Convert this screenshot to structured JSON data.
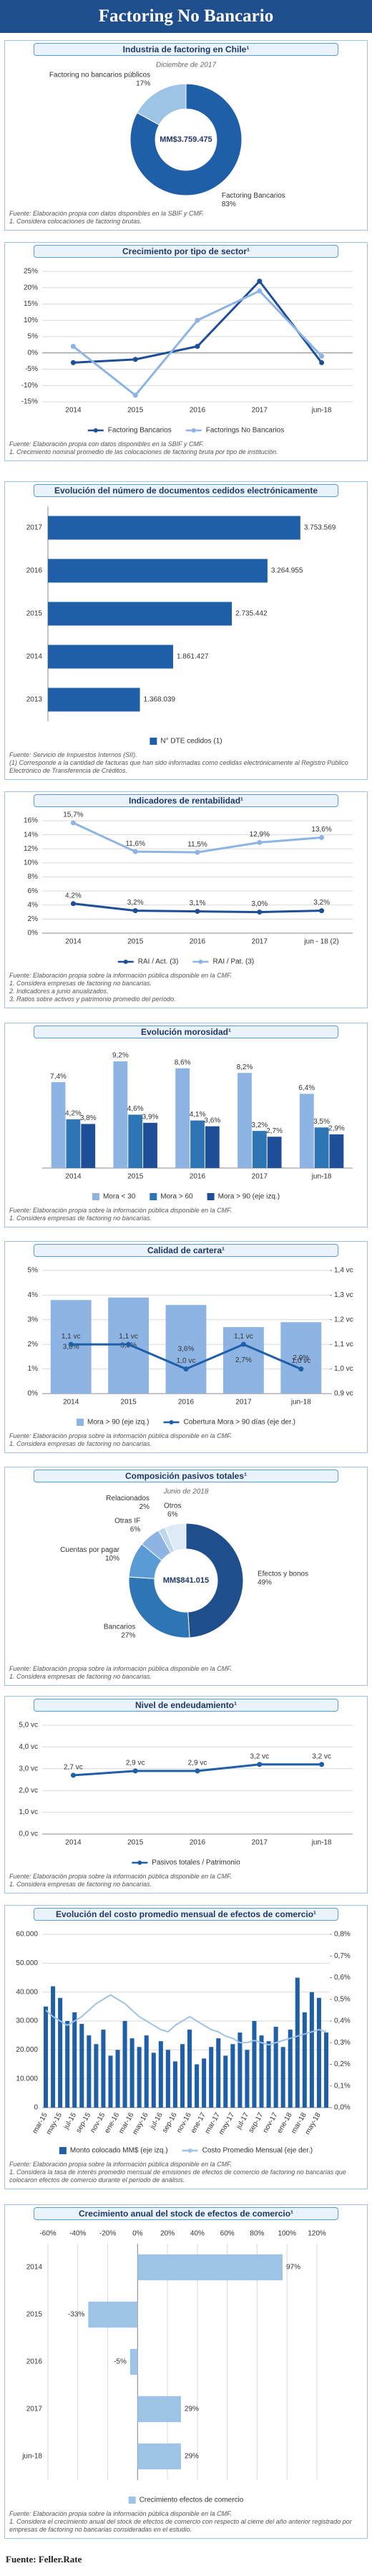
{
  "header": {
    "title": "Factoring No Bancario"
  },
  "chart_data": [
    {
      "type": "pie",
      "title": "Industria de factoring en Chile¹",
      "subtitle": "Diciembre de 2017",
      "center_label": "MM$3.759.475",
      "categories": [
        "Factoring Bancarios",
        "Factoring no bancarios públicos"
      ],
      "values": [
        83,
        17
      ],
      "value_labels": [
        "83%",
        "17%"
      ],
      "colors": [
        "#1f5fa8",
        "#9dc3e6"
      ],
      "notes": [
        "Fuente: Elaboración propia con datos disponibles en la SBIF y CMF.",
        "1. Considera colocaciones de factoring brutas."
      ]
    },
    {
      "type": "line",
      "title": "Crecimiento por tipo de sector¹",
      "categories": [
        "2014",
        "2015",
        "2016",
        "2017",
        "jun-18"
      ],
      "series": [
        {
          "name": "Factoring Bancarios",
          "color": "#1f4e99",
          "values": [
            -3,
            -2,
            2,
            22,
            -3
          ]
        },
        {
          "name": "Factorings No Bancarios",
          "color": "#8db4e2",
          "values": [
            2,
            -13,
            10,
            19,
            -1
          ]
        }
      ],
      "ylim": [
        -15,
        25
      ],
      "yticks": [
        {
          "value": -15,
          "label": "-15%"
        },
        {
          "value": -10,
          "label": "-10%"
        },
        {
          "value": -5,
          "label": "-5%"
        },
        {
          "value": 0,
          "label": "0%"
        },
        {
          "value": 5,
          "label": "5%"
        },
        {
          "value": 10,
          "label": "10%"
        },
        {
          "value": 15,
          "label": "15%"
        },
        {
          "value": 20,
          "label": "20%"
        },
        {
          "value": 25,
          "label": "25%"
        }
      ],
      "grid": true,
      "notes": [
        "Fuente: Elaboración propia con datos disponibles en la SBIF y CMF.",
        "1. Crecimiento nominal promedio de las colocaciones de factoring bruta por tipo de institución."
      ]
    },
    {
      "type": "barh",
      "title": "Evolución del número de documentos cedidos electrónicamente",
      "categories": [
        "2017",
        "2016",
        "2015",
        "2014",
        "2013"
      ],
      "series": [
        {
          "name": "N° DTE cedidos (1)",
          "color": "#1f5fa8",
          "values": [
            3753569,
            3264955,
            2735442,
            1861427,
            1368039
          ],
          "value_labels": [
            "3.753.569",
            "3.264.955",
            "2.735.442",
            "1.861.427",
            "1.368.039"
          ]
        }
      ],
      "xlim": [
        0,
        4000000
      ],
      "notes": [
        "Fuente: Servicio de Impuestos Internos (SII).",
        "(1) Corresponde a la cantidad de facturas que han sido informadas como cedidas electrónicamente al Registro Público Electrónico de Transferencia de Créditos."
      ]
    },
    {
      "type": "line",
      "title": "Indicadores de rentabilidad¹",
      "categories": [
        "2014",
        "2015",
        "2016",
        "2017",
        "jun - 18 (2)"
      ],
      "series": [
        {
          "name": "RAI / Act. (3)",
          "color": "#1f4e99",
          "values": [
            4.2,
            3.2,
            3.1,
            3.0,
            3.2
          ],
          "value_labels": [
            "4,2%",
            "3,2%",
            "3,1%",
            "3,0%",
            "3,2%"
          ]
        },
        {
          "name": "RAI / Pat. (3)",
          "color": "#8db4e2",
          "values": [
            15.7,
            11.6,
            11.5,
            12.9,
            13.6
          ],
          "value_labels": [
            "15,7%",
            "11,6%",
            "11,5%",
            "12,9%",
            "13,6%"
          ]
        }
      ],
      "ylim": [
        0,
        16
      ],
      "yticks": [
        {
          "value": 0,
          "label": "0%"
        },
        {
          "value": 2,
          "label": "2%"
        },
        {
          "value": 4,
          "label": "4%"
        },
        {
          "value": 6,
          "label": "6%"
        },
        {
          "value": 8,
          "label": "8%"
        },
        {
          "value": 10,
          "label": "10%"
        },
        {
          "value": 12,
          "label": "12%"
        },
        {
          "value": 14,
          "label": "14%"
        },
        {
          "value": 16,
          "label": "16%"
        }
      ],
      "grid": true,
      "notes": [
        "Fuente: Elaboración propia sobre la información pública disponible en la CMF.",
        "1. Considera empresas de factoring no bancarias.",
        "2. Indicadores a junio anualizados.",
        "3. Ratios sobre activos y patrimonio promedio del período."
      ]
    },
    {
      "type": "bar",
      "title": "Evolución morosidad¹",
      "categories": [
        "2014",
        "2015",
        "2016",
        "2017",
        "jun-18"
      ],
      "series": [
        {
          "name": "Mora < 30",
          "color": "#8db4e2",
          "values": [
            7.4,
            9.2,
            8.6,
            8.2,
            6.4
          ],
          "value_labels": [
            "7,4%",
            "9,2%",
            "8,6%",
            "8,2%",
            "6,4%"
          ]
        },
        {
          "name": "Mora > 60",
          "color": "#2e75b6",
          "values": [
            4.2,
            4.6,
            4.1,
            3.2,
            3.5
          ],
          "value_labels": [
            "4,2%",
            "4,6%",
            "4,1%",
            "3,2%",
            "3,5%"
          ]
        },
        {
          "name": "Mora > 90 (eje izq.)",
          "color": "#1f4e99",
          "values": [
            3.8,
            3.9,
            3.6,
            2.7,
            2.9
          ],
          "value_labels": [
            "3,8%",
            "3,9%",
            "3,6%",
            "2,7%",
            "2,9%"
          ]
        }
      ],
      "ylim": [
        0,
        10
      ],
      "notes": [
        "Fuente: Elaboración propia sobre la información pública disponible en la CMF.",
        "1. Considera empresas de factoring no bancarias."
      ]
    },
    {
      "type": "combo",
      "title": "Calidad de cartera¹",
      "categories": [
        "2014",
        "2015",
        "2016",
        "2017",
        "jun-18"
      ],
      "series": [
        {
          "name": "Mora > 90 (eje izq.)",
          "kind": "bar",
          "color": "#8db4e2",
          "values": [
            3.8,
            3.9,
            3.6,
            2.7,
            2.9
          ],
          "value_labels": [
            "3,8%",
            "3,9%",
            "3,6%",
            "2,7%",
            "2,9%"
          ]
        },
        {
          "name": "Cobertura Mora > 90 días (eje der.)",
          "kind": "line",
          "axis": "y2",
          "color": "#1f5fa8",
          "values": [
            1.1,
            1.1,
            1.0,
            1.1,
            1.0
          ],
          "value_labels": [
            "1,1 vc",
            "1,1 vc",
            "1,0 vc",
            "1,1 vc",
            "1,0 vc"
          ]
        }
      ],
      "ylim": [
        0,
        5
      ],
      "yticks": [
        {
          "value": 0,
          "label": "0%"
        },
        {
          "value": 1,
          "label": "1%"
        },
        {
          "value": 2,
          "label": "2%"
        },
        {
          "value": 3,
          "label": "3%"
        },
        {
          "value": 4,
          "label": "4%"
        },
        {
          "value": 5,
          "label": "5%"
        }
      ],
      "y2lim": [
        0.9,
        1.4
      ],
      "y2ticks": [
        {
          "value": 0.9,
          "label": "0,9 vc"
        },
        {
          "value": 1.0,
          "label": "1,0 vc"
        },
        {
          "value": 1.1,
          "label": "1,1 vc"
        },
        {
          "value": 1.2,
          "label": "1,2 vc"
        },
        {
          "value": 1.3,
          "label": "1,3 vc"
        },
        {
          "value": 1.4,
          "label": "1,4 vc"
        }
      ],
      "grid": true,
      "notes": [
        "Fuente: Elaboración propia sobre la información pública disponible en la CMF.",
        "1. Considera empresas de factoring no bancarias."
      ]
    },
    {
      "type": "pie",
      "title": "Composición pasivos totales¹",
      "subtitle": "Junio de 2018",
      "center_label": "MM$841.015",
      "categories": [
        "Efectos y bonos",
        "Bancarios",
        "Cuentas por pagar",
        "Otras IF",
        "Relacionados",
        "Otros"
      ],
      "values": [
        49,
        27,
        10,
        6,
        2,
        6
      ],
      "value_labels": [
        "49%",
        "27%",
        "10%",
        "6%",
        "2%",
        "6%"
      ],
      "colors": [
        "#1f4e8c",
        "#2e75b6",
        "#5b9bd5",
        "#8db4e2",
        "#bdd7ee",
        "#deebf7"
      ],
      "notes": [
        "Fuente: Elaboración propia sobre la información pública disponible en la CMF.",
        "1. Considera empresas de factoring no bancarias."
      ]
    },
    {
      "type": "line",
      "title": "Nivel de endeudamiento¹",
      "categories": [
        "2014",
        "2015",
        "2016",
        "2017",
        "jun-18"
      ],
      "series": [
        {
          "name": "Pasivos totales / Patrimonio",
          "color": "#1f5fa8",
          "values": [
            2.7,
            2.9,
            2.9,
            3.2,
            3.2
          ],
          "value_labels": [
            "2,7 vc",
            "2,9 vc",
            "2,9 vc",
            "3,2 vc",
            "3,2 vc"
          ]
        }
      ],
      "ylim": [
        0,
        5
      ],
      "yticks": [
        {
          "value": 0,
          "label": "0,0 vc"
        },
        {
          "value": 1,
          "label": "1,0 vc"
        },
        {
          "value": 2,
          "label": "2,0 vc"
        },
        {
          "value": 3,
          "label": "3,0 vc"
        },
        {
          "value": 4,
          "label": "4,0 vc"
        },
        {
          "value": 5,
          "label": "5,0 vc"
        }
      ],
      "grid": true,
      "notes": [
        "Fuente: Elaboración propia sobre la información pública disponible en la CMF.",
        "1. Considera empresas de factoring no bancarias."
      ]
    },
    {
      "type": "combo",
      "title": "Evolución del costo promedio mensual de efectos de comercio¹",
      "categories": [
        "mar-15",
        null,
        "may-15",
        null,
        "jul-15",
        null,
        "sep-15",
        null,
        "nov-15",
        null,
        "ene-16",
        null,
        "mar-16",
        null,
        "may-16",
        null,
        "jul-16",
        null,
        "sep-16",
        null,
        "nov-16",
        null,
        "ene-17",
        null,
        "mar-17",
        null,
        "may-17",
        null,
        "jul-17",
        null,
        "sep-17",
        null,
        "nov-17",
        null,
        "ene-18",
        null,
        "mar-18",
        null,
        "may-18",
        null
      ],
      "series": [
        {
          "name": "Monto colocado MM$ (eje izq.)",
          "kind": "bar",
          "color": "#1f5fa8",
          "values": [
            35000,
            42000,
            38000,
            30000,
            33000,
            29000,
            25000,
            22000,
            27000,
            18000,
            20000,
            30000,
            24000,
            21000,
            25000,
            19000,
            23000,
            20000,
            16000,
            22000,
            27000,
            15000,
            17000,
            21000,
            24000,
            18000,
            22000,
            26000,
            20000,
            30000,
            25000,
            23000,
            28000,
            21000,
            27000,
            45000,
            33000,
            40000,
            38000,
            26000
          ]
        },
        {
          "name": "Costo Promedio Mensual (eje der.)",
          "kind": "line",
          "axis": "y2",
          "color": "#9dc3e6",
          "values": [
            0.45,
            0.42,
            0.4,
            0.38,
            0.4,
            0.42,
            0.45,
            0.48,
            0.5,
            0.52,
            0.5,
            0.48,
            0.45,
            0.42,
            0.4,
            0.38,
            0.36,
            0.35,
            0.38,
            0.4,
            0.42,
            0.4,
            0.38,
            0.36,
            0.35,
            0.33,
            0.32,
            0.3,
            0.3,
            0.31,
            0.3,
            0.29,
            0.3,
            0.31,
            0.32,
            0.33,
            0.34,
            0.35,
            0.36,
            0.35
          ]
        }
      ],
      "ylim": [
        0,
        60000
      ],
      "yticks": [
        0,
        {
          "value": 10000,
          "label": "10.000"
        },
        {
          "value": 20000,
          "label": "20.000"
        },
        {
          "value": 30000,
          "label": "30.000"
        },
        {
          "value": 40000,
          "label": "40.000"
        },
        {
          "value": 50000,
          "label": "50.000"
        },
        {
          "value": 60000,
          "label": "60.000"
        }
      ],
      "y2lim": [
        0,
        0.8
      ],
      "y2ticks": [
        {
          "value": 0,
          "label": "0,0%"
        },
        {
          "value": 0.1,
          "label": "0,1%"
        },
        {
          "value": 0.2,
          "label": "0,2%"
        },
        {
          "value": 0.3,
          "label": "0,3%"
        },
        {
          "value": 0.4,
          "label": "0,4%"
        },
        {
          "value": 0.5,
          "label": "0,5%"
        },
        {
          "value": 0.6,
          "label": "0,6%"
        },
        {
          "value": 0.7,
          "label": "0,7%"
        },
        {
          "value": 0.8,
          "label": "0,8%"
        }
      ],
      "grid": true,
      "notes": [
        "Fuente: Elaboración propia sobre la información pública disponible en la CMF.",
        "1. Considera la tasa de interés promedio mensual de emisiones de efectos de comercio de factoring no bancarias que colocaron efectos de comercio durante el período de análisis."
      ]
    },
    {
      "type": "barh",
      "title": "Crecimiento anual del stock de efectos de comercio¹",
      "categories": [
        "2014",
        "2015",
        "2016",
        "2017",
        "jun-18"
      ],
      "series": [
        {
          "name": "Crecimiento efectos de comercio",
          "color": "#9dc3e6",
          "values": [
            97,
            -33,
            -5,
            29,
            29
          ],
          "value_labels": [
            "97%",
            "-33%",
            "-5%",
            "29%",
            "29%"
          ]
        }
      ],
      "xlim": [
        -60,
        120
      ],
      "xticks": [
        {
          "value": -60,
          "label": "-60%"
        },
        {
          "value": -40,
          "label": "-40%"
        },
        {
          "value": -20,
          "label": "-20%"
        },
        {
          "value": 0,
          "label": "0%"
        },
        {
          "value": 20,
          "label": "20%"
        },
        {
          "value": 40,
          "label": "40%"
        },
        {
          "value": 60,
          "label": "60%"
        },
        {
          "value": 80,
          "label": "80%"
        },
        {
          "value": 100,
          "label": "100%"
        },
        {
          "value": 120,
          "label": "120%"
        }
      ],
      "grid": true,
      "notes": [
        "Fuente: Elaboración propia sobre la información pública disponible en la CMF.",
        "1. Considera el crecimiento anual del stock de efectos de comercio con respecto al cierre del año anterior registrado por empresas de factoring no bancarias consideradas en el estudio."
      ]
    }
  ],
  "footer": {
    "source": "Fuente: Feller.Rate"
  }
}
